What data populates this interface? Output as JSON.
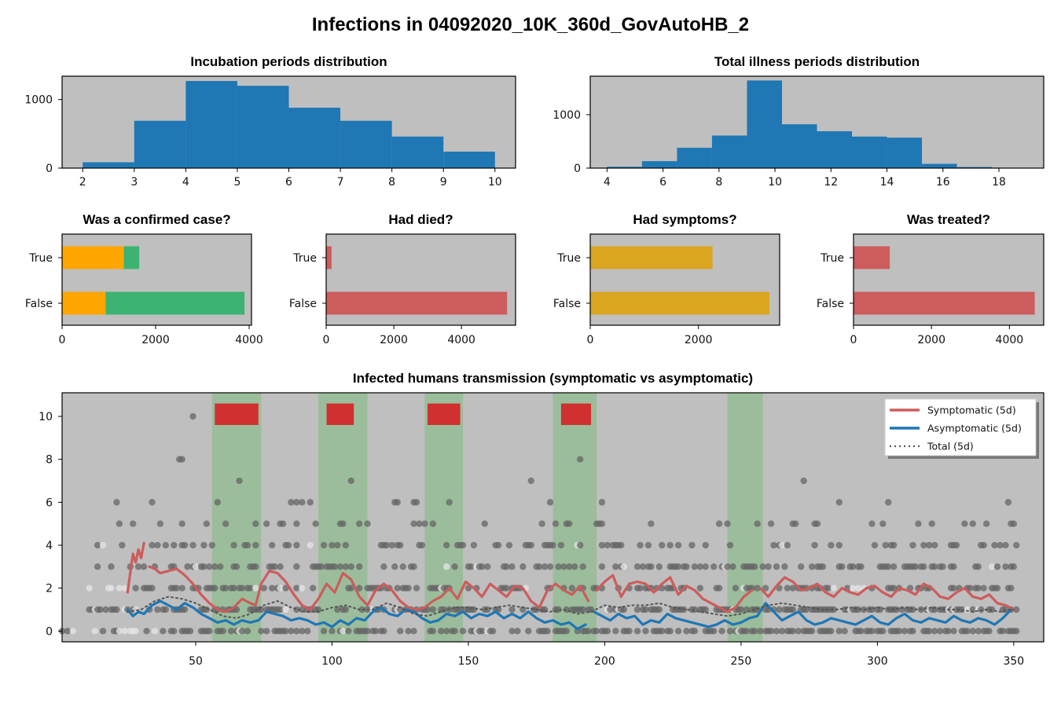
{
  "figure": {
    "title": "Infections in 04092020_10K_360d_GovAutoHB_2",
    "background": "#ffffff",
    "axes_background": "#bfbfbf"
  },
  "chart_data": [
    {
      "id": "incubation",
      "type": "bar",
      "title": "Incubation periods distribution",
      "xlabel": "",
      "ylabel": "",
      "bins": [
        {
          "x0": 2,
          "x1": 3,
          "value": 85
        },
        {
          "x0": 3,
          "x1": 4,
          "value": 690
        },
        {
          "x0": 4,
          "x1": 5,
          "value": 1270
        },
        {
          "x0": 5,
          "x1": 6,
          "value": 1200
        },
        {
          "x0": 6,
          "x1": 7,
          "value": 880
        },
        {
          "x0": 7,
          "x1": 8,
          "value": 690
        },
        {
          "x0": 8,
          "x1": 9,
          "value": 460
        },
        {
          "x0": 9,
          "x1": 10,
          "value": 240
        }
      ],
      "xlim": [
        1.6,
        10.4
      ],
      "ylim": [
        0,
        1340
      ],
      "xticks": [
        2,
        3,
        4,
        5,
        6,
        7,
        8,
        9,
        10
      ],
      "yticks": [
        0,
        1000
      ],
      "color": "#1f77b4"
    },
    {
      "id": "illness",
      "type": "bar",
      "title": "Total illness periods distribution",
      "xlabel": "",
      "ylabel": "",
      "bins": [
        {
          "x0": 4.0,
          "x1": 5.25,
          "value": 25
        },
        {
          "x0": 5.25,
          "x1": 6.5,
          "value": 130
        },
        {
          "x0": 6.5,
          "x1": 7.75,
          "value": 380
        },
        {
          "x0": 7.75,
          "x1": 9.0,
          "value": 610
        },
        {
          "x0": 9.0,
          "x1": 10.25,
          "value": 1640
        },
        {
          "x0": 10.25,
          "x1": 11.5,
          "value": 820
        },
        {
          "x0": 11.5,
          "x1": 12.75,
          "value": 690
        },
        {
          "x0": 12.75,
          "x1": 14.0,
          "value": 590
        },
        {
          "x0": 14.0,
          "x1": 15.25,
          "value": 570
        },
        {
          "x0": 15.25,
          "x1": 16.5,
          "value": 80
        },
        {
          "x0": 16.5,
          "x1": 17.75,
          "value": 20
        },
        {
          "x0": 17.75,
          "x1": 19.0,
          "value": 5
        }
      ],
      "xlim": [
        3.4,
        19.6
      ],
      "ylim": [
        0,
        1720
      ],
      "xticks": [
        4,
        6,
        8,
        10,
        12,
        14,
        16,
        18
      ],
      "yticks": [
        0,
        1000
      ],
      "color": "#1f77b4"
    },
    {
      "id": "confirmed",
      "type": "bar",
      "orientation": "horizontal",
      "stacked": true,
      "title": "Was a confirmed case?",
      "categories": [
        "True",
        "False"
      ],
      "series": [
        {
          "values": [
            1320,
            930
          ],
          "color": "#ffa500"
        },
        {
          "values": [
            330,
            2970
          ],
          "color": "#3cb371"
        }
      ],
      "xlim": [
        0,
        4050
      ],
      "xticks": [
        0,
        2000,
        4000
      ]
    },
    {
      "id": "died",
      "type": "bar",
      "orientation": "horizontal",
      "title": "Had died?",
      "categories": [
        "True",
        "False"
      ],
      "series": [
        {
          "values": [
            160,
            5350
          ],
          "color": "#cd5c5c"
        }
      ],
      "xlim": [
        0,
        5600
      ],
      "xticks": [
        0,
        2000,
        4000
      ]
    },
    {
      "id": "symptoms",
      "type": "bar",
      "orientation": "horizontal",
      "title": "Had symptoms?",
      "categories": [
        "True",
        "False"
      ],
      "series": [
        {
          "values": [
            2260,
            3310
          ],
          "color": "#daa520"
        }
      ],
      "xlim": [
        0,
        3500
      ],
      "xticks": [
        0,
        2000
      ]
    },
    {
      "id": "treated",
      "type": "bar",
      "orientation": "horizontal",
      "title": "Was treated?",
      "categories": [
        "True",
        "False"
      ],
      "series": [
        {
          "values": [
            930,
            4650
          ],
          "color": "#cd5c5c"
        }
      ],
      "xlim": [
        0,
        4880
      ],
      "xticks": [
        0,
        2000,
        4000
      ]
    },
    {
      "id": "transmission",
      "type": "line",
      "title": "Infected humans transmission (symptomatic vs asymptomatic)",
      "xlim": [
        1,
        361
      ],
      "ylim": [
        -0.5,
        11.1
      ],
      "xticks": [
        50,
        100,
        150,
        200,
        250,
        300,
        350
      ],
      "yticks": [
        0,
        2,
        4,
        6,
        8,
        10
      ],
      "green_bands": [
        [
          56,
          74
        ],
        [
          95,
          113
        ],
        [
          134,
          148
        ],
        [
          181,
          197
        ],
        [
          245,
          258
        ]
      ],
      "red_blocks": [
        [
          57,
          73
        ],
        [
          98,
          108
        ],
        [
          135,
          147
        ],
        [
          184,
          195
        ]
      ],
      "red_block_y": [
        9.6,
        10.6
      ],
      "legend": {
        "position": "upper right",
        "entries": [
          {
            "label": "Symptomatic (5d)",
            "color": "#cd5c5c",
            "style": "solid"
          },
          {
            "label": "Asymptomatic (5d)",
            "color": "#1f77b4",
            "style": "solid"
          },
          {
            "label": "Total (5d)",
            "color": "#555555",
            "style": "dotted"
          }
        ]
      },
      "series": [
        {
          "name": "Symptomatic (5d)",
          "color": "#cd5c5c",
          "x": [
            25,
            27,
            28,
            29,
            30,
            31,
            33,
            35,
            37,
            40,
            43,
            46,
            49,
            52,
            55,
            58,
            61,
            64,
            67,
            70,
            72,
            74,
            77,
            80,
            83,
            86,
            89,
            92,
            95,
            98,
            101,
            104,
            107,
            110,
            113,
            116,
            119,
            122,
            125,
            128,
            131,
            134,
            137,
            140,
            143,
            146,
            149,
            152,
            155,
            158,
            161,
            164,
            167,
            170,
            173,
            176,
            179,
            182,
            185,
            188,
            191,
            194,
            197,
            200,
            203,
            206,
            209,
            212,
            215,
            218,
            221,
            224,
            227,
            230,
            233,
            236,
            239,
            242,
            245,
            248,
            251,
            254,
            257,
            260,
            263,
            266,
            269,
            272,
            275,
            278,
            281,
            284,
            287,
            290,
            293,
            296,
            299,
            302,
            305,
            308,
            311,
            314,
            317,
            320,
            323,
            326,
            329,
            332,
            335,
            338,
            341,
            344,
            347,
            350
          ],
          "y": [
            1.8,
            3.6,
            3.2,
            3.8,
            3.4,
            4.1,
            3.0,
            2.9,
            2.7,
            2.8,
            2.9,
            2.6,
            2.2,
            1.7,
            1.3,
            1.0,
            0.9,
            1.1,
            1.5,
            1.3,
            1.2,
            2.2,
            2.8,
            2.7,
            2.3,
            1.7,
            1.2,
            1.0,
            1.5,
            2.2,
            1.8,
            2.7,
            2.4,
            1.6,
            1.2,
            1.9,
            2.2,
            1.9,
            1.4,
            1.1,
            1.0,
            1.1,
            1.4,
            1.6,
            2.0,
            1.5,
            2.3,
            2.0,
            1.6,
            2.2,
            1.9,
            1.6,
            2.1,
            2.0,
            1.4,
            1.1,
            1.9,
            2.2,
            1.9,
            1.7,
            2.1,
            1.4,
            1.9,
            2.3,
            2.6,
            1.6,
            2.2,
            2.3,
            2.2,
            1.8,
            2.2,
            2.5,
            1.7,
            2.1,
            1.9,
            1.5,
            1.3,
            1.1,
            0.9,
            1.1,
            1.6,
            1.9,
            2.0,
            1.6,
            2.1,
            2.5,
            2.3,
            1.9,
            2.0,
            2.2,
            1.8,
            1.6,
            2.0,
            1.8,
            1.7,
            2.0,
            2.1,
            1.8,
            1.6,
            2.0,
            1.9,
            1.7,
            2.2,
            2.0,
            1.6,
            1.5,
            1.8,
            2.0,
            1.6,
            1.5,
            1.7,
            1.3,
            1.2,
            1.0
          ],
          "gaps_after": [
            31,
            194,
            254
          ]
        },
        {
          "name": "Asymptomatic (5d)",
          "color": "#1f77b4",
          "x": [
            25,
            27,
            29,
            31,
            34,
            37,
            40,
            43,
            46,
            49,
            52,
            55,
            58,
            61,
            64,
            67,
            70,
            73,
            76,
            79,
            82,
            85,
            88,
            91,
            94,
            97,
            100,
            103,
            106,
            109,
            112,
            115,
            118,
            121,
            124,
            127,
            130,
            133,
            136,
            139,
            142,
            145,
            148,
            151,
            154,
            157,
            160,
            163,
            166,
            169,
            172,
            175,
            178,
            181,
            184,
            187,
            190,
            193,
            196,
            199,
            202,
            205,
            208,
            211,
            214,
            217,
            220,
            223,
            226,
            229,
            232,
            235,
            238,
            241,
            244,
            247,
            250,
            253,
            256,
            259,
            262,
            265,
            268,
            271,
            274,
            277,
            280,
            283,
            286,
            289,
            292,
            295,
            298,
            301,
            304,
            307,
            310,
            313,
            316,
            319,
            322,
            325,
            328,
            331,
            334,
            337,
            340,
            343,
            346,
            349
          ],
          "y": [
            1.0,
            0.7,
            0.9,
            0.8,
            1.2,
            1.4,
            1.2,
            1.0,
            1.3,
            1.1,
            0.8,
            0.6,
            0.4,
            0.5,
            0.3,
            0.5,
            0.4,
            0.5,
            0.9,
            0.8,
            0.7,
            0.5,
            0.6,
            0.5,
            0.3,
            0.4,
            0.2,
            0.5,
            0.3,
            0.6,
            0.5,
            0.9,
            1.1,
            0.8,
            0.7,
            1.0,
            0.9,
            0.6,
            0.4,
            0.5,
            0.8,
            0.7,
            0.9,
            0.6,
            0.8,
            0.7,
            0.9,
            0.6,
            0.8,
            0.6,
            0.9,
            0.6,
            0.4,
            0.5,
            0.3,
            0.4,
            0.1,
            0.3,
            0.9,
            0.7,
            0.5,
            0.8,
            0.6,
            0.7,
            0.3,
            0.5,
            0.4,
            0.8,
            0.6,
            0.5,
            0.4,
            0.3,
            0.2,
            0.3,
            0.5,
            0.3,
            0.4,
            0.6,
            0.7,
            1.3,
            0.9,
            0.5,
            0.7,
            0.9,
            0.5,
            0.3,
            0.4,
            0.6,
            0.5,
            0.4,
            0.3,
            0.5,
            0.7,
            0.4,
            0.3,
            0.6,
            0.8,
            0.5,
            0.4,
            0.6,
            0.5,
            0.4,
            0.7,
            0.5,
            0.4,
            0.6,
            0.5,
            0.3,
            0.6,
            1.0
          ],
          "gaps_after": [
            193
          ]
        },
        {
          "name": "Total (5d)",
          "color": "#555555",
          "dotted": true,
          "x": [
            25,
            30,
            35,
            40,
            45,
            50,
            55,
            60,
            65,
            70,
            75,
            80,
            85,
            90,
            95,
            100,
            105,
            110,
            115,
            120,
            125,
            130,
            135,
            140,
            145,
            150,
            155,
            160,
            165,
            170,
            175,
            180,
            185,
            190,
            195,
            200,
            205,
            210,
            215,
            220,
            225,
            230,
            235,
            240,
            245,
            250,
            255,
            260,
            265,
            270,
            275,
            280,
            285,
            290,
            295,
            300,
            305,
            310,
            315,
            320,
            325,
            330,
            335,
            340,
            345,
            350
          ],
          "y": [
            0.9,
            1.0,
            1.4,
            1.6,
            1.5,
            1.3,
            1.0,
            0.7,
            0.6,
            0.8,
            1.2,
            1.4,
            1.1,
            0.9,
            0.9,
            1.1,
            1.2,
            1.0,
            1.0,
            1.3,
            1.1,
            0.8,
            0.7,
            0.9,
            1.1,
            1.1,
            1.0,
            1.1,
            1.2,
            1.1,
            1.0,
            0.9,
            1.0,
            0.8,
            0.9,
            1.2,
            1.1,
            1.2,
            1.2,
            1.3,
            1.1,
            1.0,
            0.9,
            0.8,
            0.7,
            0.8,
            1.0,
            1.2,
            1.3,
            1.2,
            1.1,
            1.0,
            1.0,
            1.1,
            1.0,
            1.1,
            1.0,
            1.1,
            1.0,
            1.1,
            1.0,
            1.0,
            0.9,
            1.0,
            0.9,
            1.0
          ]
        }
      ],
      "scatter": {
        "color": "#666666",
        "alpha": 0.75,
        "light_color": "#e6e6e6",
        "x_range": [
          1,
          351
        ],
        "seed": 7
      }
    }
  ]
}
